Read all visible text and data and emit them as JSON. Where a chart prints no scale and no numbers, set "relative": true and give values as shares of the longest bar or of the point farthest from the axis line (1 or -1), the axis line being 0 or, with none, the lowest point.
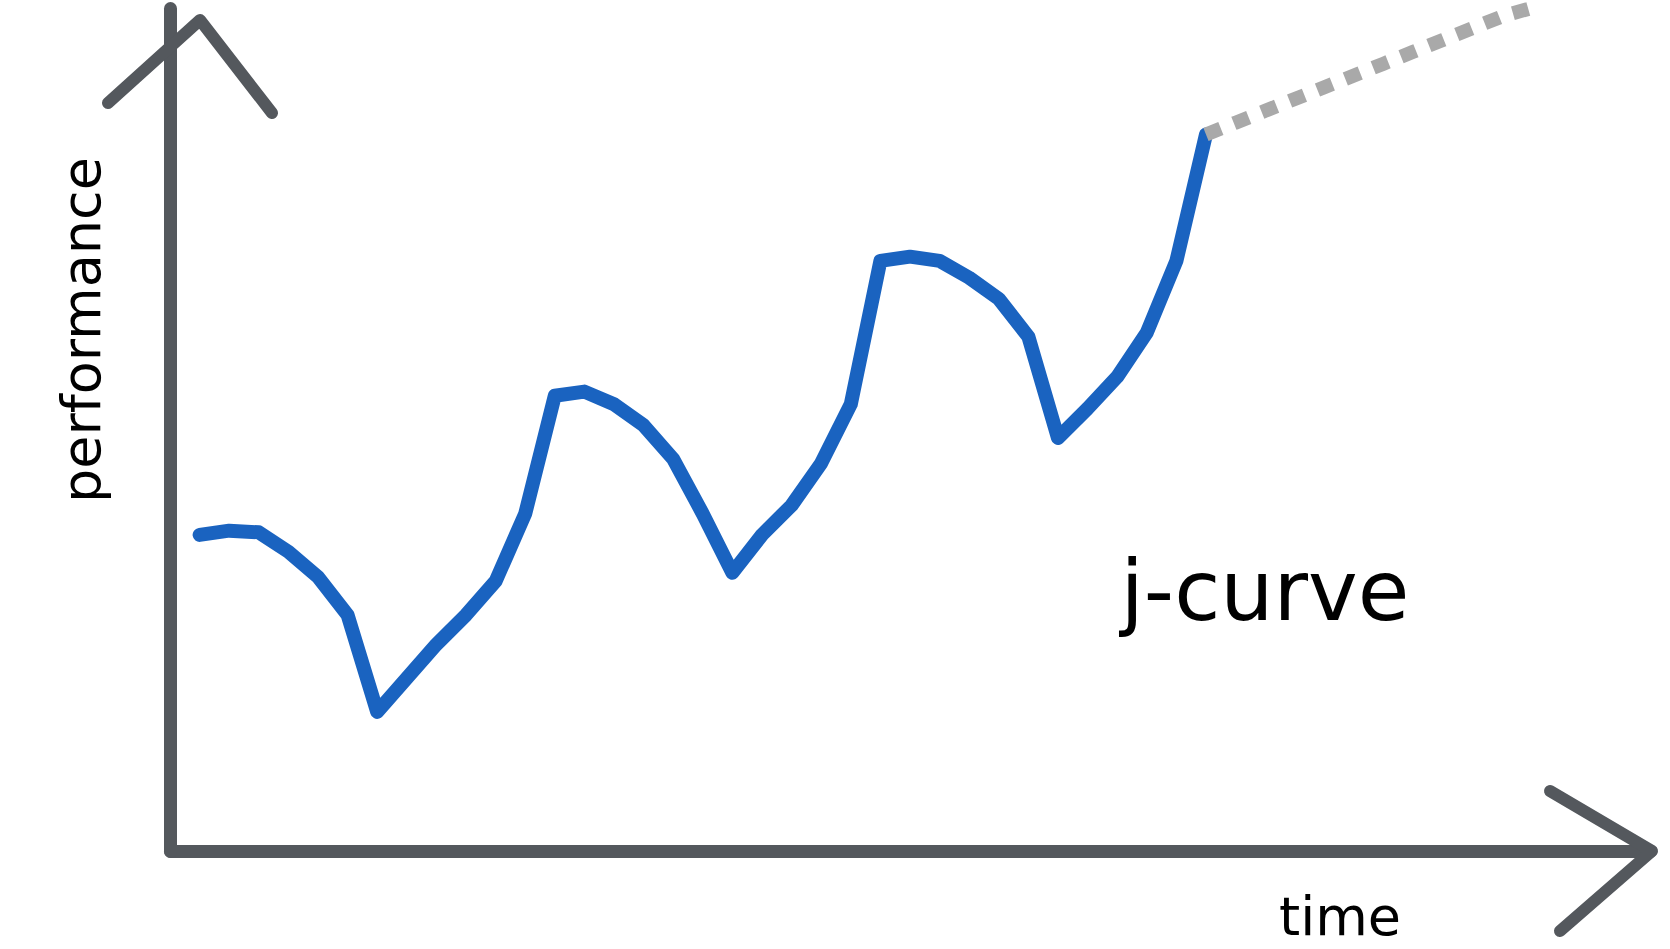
{
  "chart_data": {
    "type": "line",
    "relative": true,
    "xlabel": "time",
    "ylabel": "performance",
    "annotations": [
      "j-curve"
    ],
    "categories": [
      null,
      null,
      null,
      null,
      null,
      null,
      null,
      null,
      null,
      null,
      null,
      null,
      null,
      null,
      null,
      null,
      null,
      null,
      null,
      null,
      null,
      null,
      null,
      null,
      null,
      null,
      null,
      null,
      null,
      null,
      null,
      null,
      null,
      null,
      null,
      null,
      null,
      null,
      null,
      null,
      null,
      null,
      null,
      null,
      null,
      null
    ],
    "series": [
      {
        "color": "#1a63c0",
        "line_style": "solid",
        "values": [
          0.375,
          0.38,
          0.378,
          0.355,
          0.325,
          0.28,
          0.165,
          0.205,
          0.245,
          0.28,
          0.32,
          0.4,
          0.54,
          0.545,
          0.53,
          0.505,
          0.465,
          0.4,
          0.33,
          0.375,
          0.41,
          0.46,
          0.53,
          0.7,
          0.705,
          0.7,
          0.68,
          0.655,
          0.61,
          0.49,
          0.525,
          0.5625,
          0.615,
          0.7,
          0.85,
          null,
          null,
          null,
          null,
          null,
          null,
          null,
          null,
          null,
          null,
          null
        ]
      },
      {
        "color": "#a9a9a9",
        "line_style": "dashed",
        "values": [
          null,
          null,
          null,
          null,
          null,
          null,
          null,
          null,
          null,
          null,
          null,
          null,
          null,
          null,
          null,
          null,
          null,
          null,
          null,
          null,
          null,
          null,
          null,
          null,
          null,
          null,
          null,
          null,
          null,
          null,
          null,
          null,
          null,
          null,
          0.85,
          0.864,
          0.878,
          0.892,
          0.906,
          0.92,
          0.934,
          0.948,
          0.962,
          0.976,
          0.99,
          1.0
        ]
      }
    ]
  }
}
